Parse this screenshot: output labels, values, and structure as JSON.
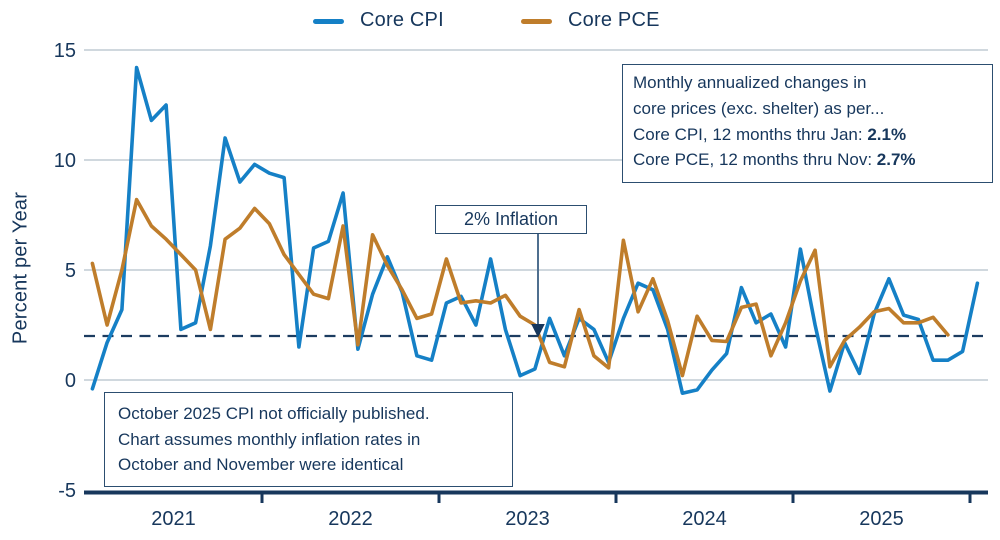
{
  "legend": {
    "cpi_label": "Core CPI",
    "pce_label": "Core PCE"
  },
  "y_axis": {
    "label": "Percent per Year",
    "ticks": [
      15,
      10,
      5,
      0,
      -5
    ]
  },
  "x_axis": {
    "years": [
      "2021",
      "2022",
      "2023",
      "2024",
      "2025"
    ]
  },
  "annotations": {
    "inflation_target": "2% Inflation",
    "info_box": {
      "line1": "Monthly annualized changes in",
      "line2": "core prices (exc. shelter) as per...",
      "cpi_prefix": "Core CPI, 12 months thru Jan: ",
      "cpi_value": "2.1",
      "cpi_suffix": "%",
      "pce_prefix": "Core PCE, 12 months thru Nov: ",
      "pce_value": "2.7",
      "pce_suffix": "%"
    },
    "note_box": {
      "line1": "October 2025 CPI not officially published.",
      "line2": "Chart assumes monthly inflation rates in",
      "line3": "October and November were identical"
    }
  },
  "colors": {
    "cpi_blue": "#1580c6",
    "pce_orange": "#bf7d2b",
    "navy_text": "#17375c",
    "gridline": "#b5c1cb",
    "dashed_reference": "#1c3c60",
    "axis": "#17375c",
    "arrow_connector": "#4f6f8f",
    "background": "#ffffff"
  },
  "chart_data": {
    "type": "line",
    "frequency": "monthly",
    "x_start": "2021-01",
    "ylabel": "Percent per Year",
    "ylim": [
      -5,
      15
    ],
    "grid": "horizontal",
    "legend_position": "top-center",
    "reference_line": 2,
    "x_tick_labels": [
      "2021",
      "2022",
      "2023",
      "2024",
      "2025"
    ],
    "series": [
      {
        "name": "Core CPI",
        "color": "#1580c6",
        "start": "2021-01",
        "end": "2026-01",
        "values": [
          -0.4,
          1.7,
          3.2,
          14.2,
          11.8,
          12.5,
          2.3,
          2.6,
          6.1,
          11.0,
          9.0,
          9.8,
          9.4,
          9.2,
          1.5,
          6.0,
          6.3,
          8.5,
          1.4,
          3.9,
          5.6,
          4.0,
          1.1,
          0.9,
          3.5,
          3.8,
          2.5,
          5.5,
          2.3,
          0.2,
          0.5,
          2.8,
          1.1,
          2.8,
          2.3,
          0.8,
          2.8,
          4.4,
          4.1,
          2.3,
          -0.6,
          -0.45,
          0.45,
          1.2,
          4.2,
          2.6,
          3.0,
          1.5,
          5.95,
          2.5,
          -0.5,
          1.7,
          0.3,
          3.0,
          4.6,
          2.95,
          2.75,
          0.9,
          0.9,
          1.3,
          4.4
        ]
      },
      {
        "name": "Core PCE",
        "color": "#bf7d2b",
        "start": "2021-01",
        "end": "2025-11",
        "values": [
          5.3,
          2.5,
          5.0,
          8.2,
          7.0,
          6.4,
          5.7,
          5.0,
          2.3,
          6.4,
          6.9,
          7.8,
          7.1,
          5.7,
          4.8,
          3.9,
          3.7,
          7.0,
          1.6,
          6.6,
          5.2,
          4.1,
          2.8,
          3.0,
          5.5,
          3.5,
          3.6,
          3.5,
          3.85,
          2.9,
          2.5,
          0.8,
          0.6,
          3.2,
          1.1,
          0.55,
          6.35,
          3.1,
          4.6,
          2.7,
          0.2,
          2.9,
          1.8,
          1.75,
          3.3,
          3.45,
          1.1,
          2.6,
          4.5,
          5.9,
          0.6,
          1.8,
          2.4,
          3.1,
          3.25,
          2.6,
          2.6,
          2.85,
          2.05
        ]
      }
    ]
  }
}
